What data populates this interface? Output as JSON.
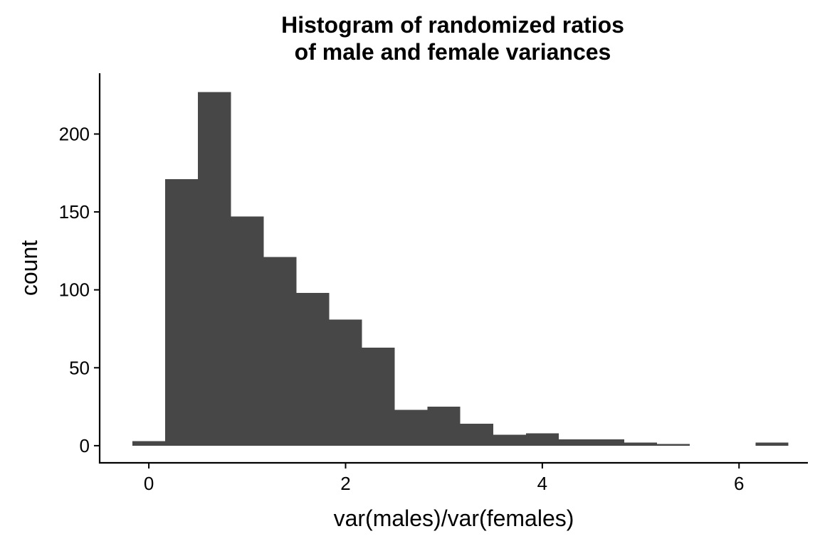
{
  "chart_data": {
    "type": "bar",
    "title_lines": [
      "Histogram of randomized ratios",
      "of male and female variances"
    ],
    "xlabel": "var(males)/var(females)",
    "ylabel": "count",
    "bin_width": 0.3333,
    "bins": [
      {
        "x0": -0.1667,
        "x1": 0.1667,
        "count": 3
      },
      {
        "x0": 0.1667,
        "x1": 0.5,
        "count": 171
      },
      {
        "x0": 0.5,
        "x1": 0.8333,
        "count": 227
      },
      {
        "x0": 0.8333,
        "x1": 1.1667,
        "count": 147
      },
      {
        "x0": 1.1667,
        "x1": 1.5,
        "count": 121
      },
      {
        "x0": 1.5,
        "x1": 1.8333,
        "count": 98
      },
      {
        "x0": 1.8333,
        "x1": 2.1667,
        "count": 81
      },
      {
        "x0": 2.1667,
        "x1": 2.5,
        "count": 63
      },
      {
        "x0": 2.5,
        "x1": 2.8333,
        "count": 23
      },
      {
        "x0": 2.8333,
        "x1": 3.1667,
        "count": 25
      },
      {
        "x0": 3.1667,
        "x1": 3.5,
        "count": 14
      },
      {
        "x0": 3.5,
        "x1": 3.8333,
        "count": 7
      },
      {
        "x0": 3.8333,
        "x1": 4.1667,
        "count": 8
      },
      {
        "x0": 4.1667,
        "x1": 4.5,
        "count": 4
      },
      {
        "x0": 4.5,
        "x1": 4.8333,
        "count": 4
      },
      {
        "x0": 4.8333,
        "x1": 5.1667,
        "count": 2
      },
      {
        "x0": 5.1667,
        "x1": 5.5,
        "count": 1
      },
      {
        "x0": 5.5,
        "x1": 5.8333,
        "count": 0
      },
      {
        "x0": 5.8333,
        "x1": 6.1667,
        "count": 0
      },
      {
        "x0": 6.1667,
        "x1": 6.5,
        "count": 2
      }
    ],
    "xlim": [
      -0.5,
      6.7
    ],
    "ylim": [
      -11,
      239
    ],
    "x_ticks": [
      0,
      2,
      4,
      6
    ],
    "y_ticks": [
      0,
      50,
      100,
      150,
      200
    ],
    "bar_color": "#474747",
    "grid": false,
    "legend": "none"
  }
}
